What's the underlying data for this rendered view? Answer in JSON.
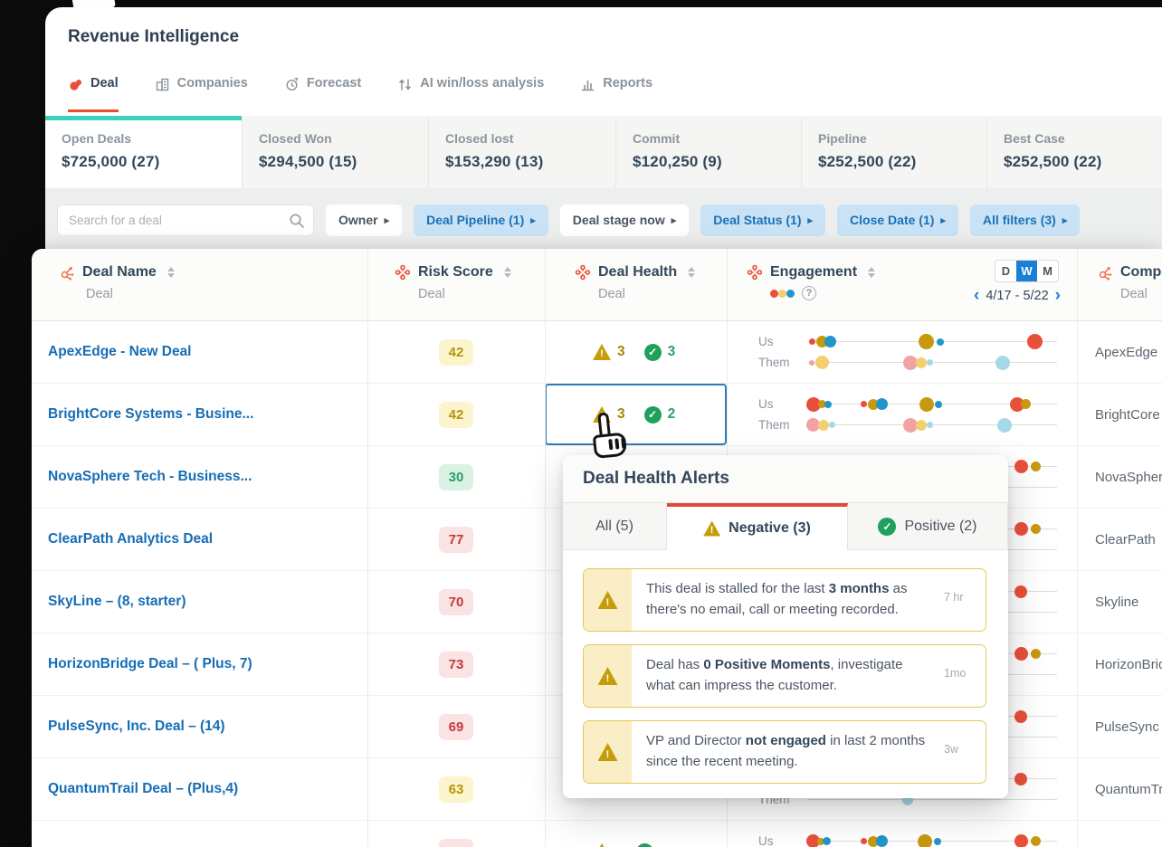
{
  "colors": {
    "accent_red": "#eb4d2c",
    "teal": "#3fd0bd",
    "chip_blue_bg": "#c9e2f5",
    "chip_blue_text": "#1a72b8",
    "link_blue": "#156db5",
    "warn_gold": "#c79c0a",
    "positive_green": "#1fa15d",
    "toggle_blue": "#1b7fd4",
    "dot_red": "#e8503a",
    "dot_gold": "#c8990f",
    "dot_blue": "#2196c9",
    "dot_pink": "#f2a2a2",
    "dot_yellow": "#f3cf70",
    "dot_ltblue": "#a5d8e8"
  },
  "app": {
    "title": "Revenue Intelligence",
    "nav_tabs": [
      {
        "label": "Deal",
        "icon": "gong-logo-icon",
        "active": true
      },
      {
        "label": "Companies",
        "icon": "companies-icon",
        "active": false
      },
      {
        "label": "Forecast",
        "icon": "forecast-icon",
        "active": false
      },
      {
        "label": "AI win/loss analysis",
        "icon": "winloss-icon",
        "active": false
      },
      {
        "label": "Reports",
        "icon": "reports-icon",
        "active": false
      }
    ],
    "summary_cards": [
      {
        "label": "Open Deals",
        "value": "$725,000 (27)",
        "active": true
      },
      {
        "label": "Closed Won",
        "value": "$294,500 (15)",
        "active": false
      },
      {
        "label": "Closed lost",
        "value": "$153,290 (13)",
        "active": false
      },
      {
        "label": "Commit",
        "value": "$120,250 (9)",
        "active": false
      },
      {
        "label": "Pipeline",
        "value": "$252,500 (22)",
        "active": false
      },
      {
        "label": "Best Case",
        "value": "$252,500 (22)",
        "active": false
      }
    ],
    "filters": {
      "search_placeholder": "Search for a deal",
      "buttons": [
        {
          "label": "Owner",
          "highlighted": false
        },
        {
          "label": "Deal Pipeline (1)",
          "highlighted": true
        },
        {
          "label": "Deal stage now",
          "highlighted": false
        },
        {
          "label": "Deal Status (1)",
          "highlighted": true
        },
        {
          "label": "Close Date (1)",
          "highlighted": true
        },
        {
          "label": "All filters (3)",
          "highlighted": true
        }
      ]
    }
  },
  "table": {
    "columns": [
      {
        "label": "Deal Name",
        "sublabel": "Deal"
      },
      {
        "label": "Risk Score",
        "sublabel": "Deal"
      },
      {
        "label": "Deal Health",
        "sublabel": "Deal"
      },
      {
        "label": "Engagement",
        "sublabel": ""
      },
      {
        "label": "Company",
        "sublabel": "Deal"
      }
    ],
    "engagement_header": {
      "toggle": [
        "D",
        "W",
        "M"
      ],
      "toggle_active": "W",
      "date_range": "4/17 - 5/22",
      "prev": "‹",
      "next": "›",
      "us_label": "Us",
      "them_label": "Them"
    },
    "rows": [
      {
        "deal_name": "ApexEdge - New Deal",
        "risk_score": "42",
        "risk_level": "medium",
        "neg": "3",
        "pos": "3",
        "company": "ApexEdge",
        "selected": false,
        "engagement": {
          "us": [
            [
              0.015,
              7,
              "red"
            ],
            [
              0.055,
              13,
              "gold"
            ],
            [
              0.09,
              13,
              "blue"
            ],
            [
              0.475,
              17,
              "gold"
            ],
            [
              0.53,
              8,
              "blue"
            ],
            [
              0.91,
              17,
              "red"
            ]
          ],
          "them": [
            [
              0.015,
              6,
              "pink"
            ],
            [
              0.055,
              15,
              "yellow"
            ],
            [
              0.41,
              16,
              "pink"
            ],
            [
              0.455,
              12,
              "yellow"
            ],
            [
              0.49,
              7,
              "ltblue"
            ],
            [
              0.78,
              16,
              "ltblue"
            ]
          ]
        }
      },
      {
        "deal_name": "BrightCore Systems - Busine...",
        "risk_score": "42",
        "risk_level": "medium",
        "neg": "3",
        "pos": "2",
        "company": "BrightCore",
        "selected": true,
        "engagement": {
          "us": [
            [
              0.02,
              16,
              "red"
            ],
            [
              0.055,
              9,
              "gold"
            ],
            [
              0.08,
              8,
              "blue"
            ],
            [
              0.225,
              7,
              "red"
            ],
            [
              0.26,
              12,
              "gold"
            ],
            [
              0.295,
              13,
              "blue"
            ],
            [
              0.475,
              16,
              "gold"
            ],
            [
              0.525,
              8,
              "blue"
            ],
            [
              0.84,
              16,
              "red"
            ],
            [
              0.875,
              11,
              "gold"
            ]
          ],
          "them": [
            [
              0.02,
              15,
              "pink"
            ],
            [
              0.06,
              12,
              "yellow"
            ],
            [
              0.095,
              7,
              "ltblue"
            ],
            [
              0.41,
              16,
              "pink"
            ],
            [
              0.455,
              12,
              "yellow"
            ],
            [
              0.49,
              7,
              "ltblue"
            ],
            [
              0.79,
              16,
              "ltblue"
            ]
          ]
        }
      },
      {
        "deal_name": "NovaSphere Tech - Business...",
        "risk_score": "30",
        "risk_level": "low",
        "neg": "",
        "pos": "",
        "company": "NovaSphere",
        "selected": false,
        "engagement": {
          "us": [
            [
              0.855,
              15,
              "red"
            ],
            [
              0.915,
              11,
              "gold"
            ]
          ],
          "them": []
        }
      },
      {
        "deal_name": "ClearPath Analytics Deal",
        "risk_score": "77",
        "risk_level": "high",
        "neg": "",
        "pos": "",
        "company": "ClearPath",
        "selected": false,
        "engagement": {
          "us": [
            [
              0.855,
              15,
              "red"
            ],
            [
              0.915,
              11,
              "gold"
            ]
          ],
          "them": []
        }
      },
      {
        "deal_name": "SkyLine – (8, starter)",
        "risk_score": "70",
        "risk_level": "high",
        "neg": "",
        "pos": "",
        "company": "Skyline",
        "selected": false,
        "engagement": {
          "us": [
            [
              0.855,
              14,
              "red"
            ]
          ],
          "them": []
        }
      },
      {
        "deal_name": "HorizonBridge Deal – ( Plus, 7)",
        "risk_score": "73",
        "risk_level": "high",
        "neg": "",
        "pos": "",
        "company": "HorizonBridge",
        "selected": false,
        "engagement": {
          "us": [
            [
              0.855,
              15,
              "red"
            ],
            [
              0.915,
              11,
              "gold"
            ]
          ],
          "them": []
        }
      },
      {
        "deal_name": "PulseSync, Inc. Deal – (14)",
        "risk_score": "69",
        "risk_level": "high",
        "neg": "",
        "pos": "",
        "company": "PulseSync",
        "selected": false,
        "engagement": {
          "us": [
            [
              0.855,
              14,
              "red"
            ]
          ],
          "them": []
        }
      },
      {
        "deal_name": "QuantumTrail Deal – (Plus,4)",
        "risk_score": "63",
        "risk_level": "medium",
        "neg": "",
        "pos": "",
        "company": "QuantumTrail",
        "selected": false,
        "engagement": {
          "us": [
            [
              0.855,
              14,
              "red"
            ]
          ],
          "them": [
            [
              0.4,
              12,
              "ltblue"
            ]
          ]
        }
      },
      {
        "deal_name": "",
        "risk_score": "",
        "risk_level": "high",
        "neg": "",
        "pos": "",
        "company": "",
        "selected": false,
        "engagement": {
          "us": [
            [
              0.02,
              15,
              "red"
            ],
            [
              0.05,
              8,
              "gold"
            ],
            [
              0.075,
              9,
              "blue"
            ],
            [
              0.225,
              7,
              "red"
            ],
            [
              0.26,
              12,
              "gold"
            ],
            [
              0.295,
              13,
              "blue"
            ],
            [
              0.47,
              16,
              "gold"
            ],
            [
              0.52,
              8,
              "blue"
            ],
            [
              0.855,
              15,
              "red"
            ],
            [
              0.915,
              11,
              "gold"
            ]
          ],
          "them": []
        }
      }
    ]
  },
  "popup": {
    "title": "Deal Health Alerts",
    "tabs": [
      {
        "label": "All (5)",
        "icon": "none",
        "active": false
      },
      {
        "label": "Negative (3)",
        "icon": "warning",
        "active": true
      },
      {
        "label": "Positive (2)",
        "icon": "check",
        "active": false
      }
    ],
    "alerts": [
      {
        "age": "7 hr",
        "segments": [
          {
            "text": "This deal is stalled for the last ",
            "bold": false
          },
          {
            "text": "3 months",
            "bold": true
          },
          {
            "text": " as there's no email, call or meeting recorded.",
            "bold": false
          }
        ]
      },
      {
        "age": "1mo",
        "segments": [
          {
            "text": "Deal has ",
            "bold": false
          },
          {
            "text": "0 Positive Moments",
            "bold": true
          },
          {
            "text": ", investigate what can impress the customer.",
            "bold": false
          }
        ]
      },
      {
        "age": "3w",
        "segments": [
          {
            "text": "VP and Director ",
            "bold": false
          },
          {
            "text": "not engaged",
            "bold": true
          },
          {
            "text": " in last 2 months since the recent meeting.",
            "bold": false
          }
        ]
      }
    ]
  }
}
